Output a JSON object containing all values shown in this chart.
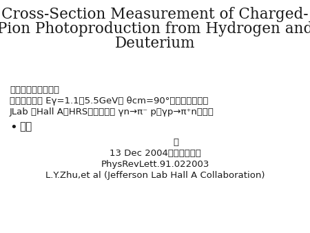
{
  "title_line1": "Cross-Section Measurement of Charged-",
  "title_line2": "Pion Photoproduction from Hydrogen and",
  "title_line3": "Deuterium",
  "author_line1": "L.Y.Zhu,et al (Jefferson Lab Hall A Collaboration)",
  "author_line2": "PhysRevLett.91.022003",
  "date_line1": "13 Dec 2004　　藤林　丈",
  "date_line2": "司",
  "bullet_char": "•",
  "bullet_header": "概略",
  "body_line1": "JLab のHall AでHRSを用いて、 γn→π⁻ pとγp→π⁺nの反応",
  "body_line2": "　について、 Eγ=1.1～5.5GeV、 θcm=90°での微分断面積",
  "body_line3": "　の測定を行った。",
  "background_color": "#ffffff",
  "text_color": "#1a1a1a",
  "title_fontsize": 15.5,
  "author_fontsize": 9.5,
  "date_fontsize": 9.5,
  "bullet_header_fontsize": 11,
  "body_fontsize": 9.5
}
